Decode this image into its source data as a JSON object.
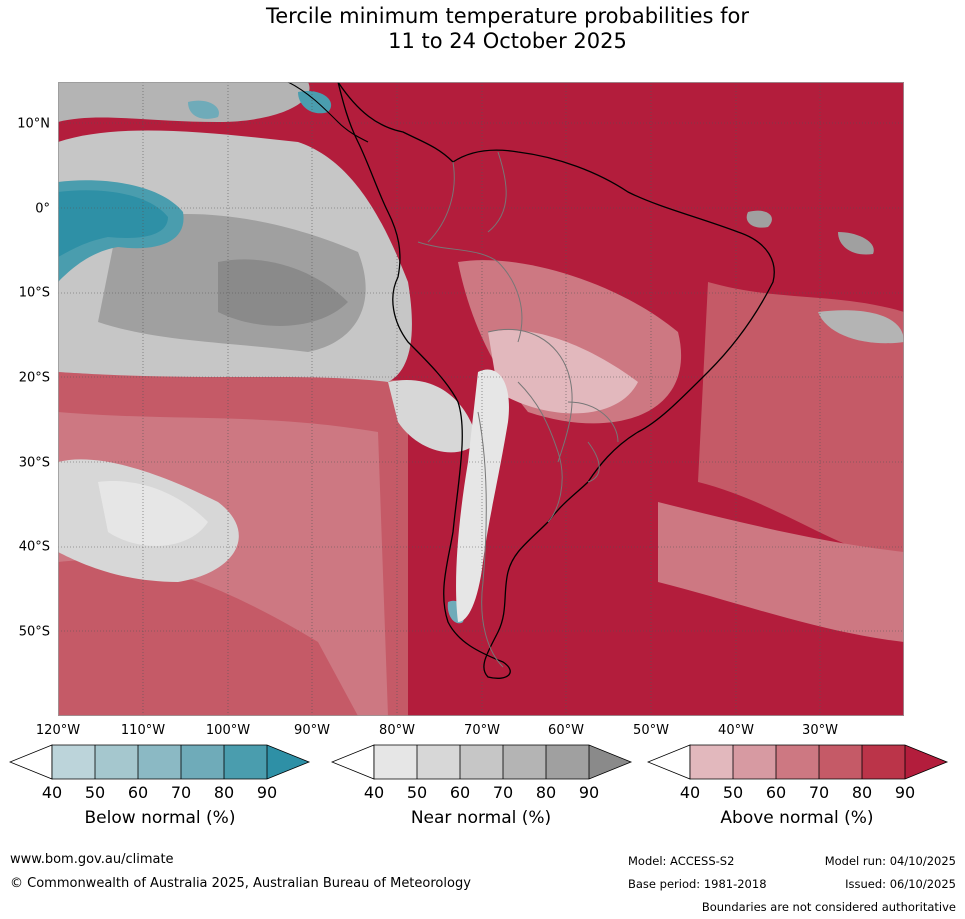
{
  "title": {
    "line1": "Tercile minimum temperature probabilities for",
    "line2": "11 to 24 October 2025"
  },
  "map": {
    "region": "South America and surrounding oceans",
    "lat_labels": [
      "10°N",
      "0°",
      "10°S",
      "20°S",
      "30°S",
      "40°S",
      "50°S"
    ],
    "lon_labels": [
      "120°W",
      "110°W",
      "100°W",
      "90°W",
      "80°W",
      "70°W",
      "60°W",
      "50°W",
      "40°W",
      "30°W"
    ]
  },
  "colorbars": [
    {
      "label": "Below normal (%)",
      "ticks": [
        "40",
        "50",
        "60",
        "70",
        "80",
        "90"
      ],
      "colors": [
        "#bcd4da",
        "#a5c7ce",
        "#8bb9c4",
        "#6fabb9",
        "#4a9dae",
        "#2e90a6"
      ]
    },
    {
      "label": "Near normal (%)",
      "ticks": [
        "40",
        "50",
        "60",
        "70",
        "80",
        "90"
      ],
      "colors": [
        "#e6e6e6",
        "#d7d7d7",
        "#c6c6c6",
        "#b4b4b4",
        "#a0a0a0",
        "#8a8a8a"
      ]
    },
    {
      "label": "Above normal (%)",
      "ticks": [
        "40",
        "50",
        "60",
        "70",
        "80",
        "90"
      ],
      "colors": [
        "#e2b8bd",
        "#d79aa2",
        "#cd7882",
        "#c55a67",
        "#bb3449",
        "#b31d3c"
      ]
    }
  ],
  "footer": {
    "website": "www.bom.gov.au/climate",
    "copyright": "© Commonwealth of Australia 2025, Australian Bureau of Meteorology",
    "model": "Model: ACCESS-S2",
    "base_period": "Base period: 1981-2018",
    "model_run": "Model run: 04/10/2025",
    "issued": "Issued: 06/10/2025",
    "disclaimer": "Boundaries are not considered authoritative"
  }
}
